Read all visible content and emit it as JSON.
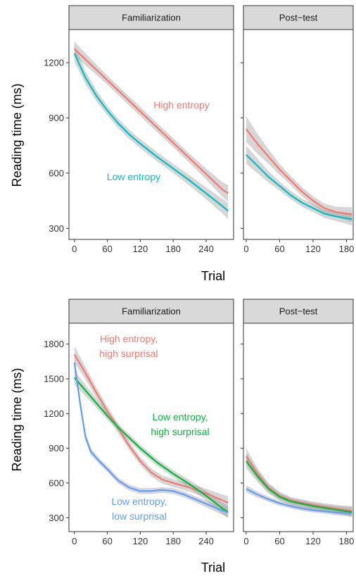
{
  "chart_data": [
    {
      "type": "line",
      "ylabel": "Reading time (ms)",
      "xlabel": "Trial",
      "colors": {
        "High entropy": "#F8766D",
        "Low entropy": "#00BFC4"
      },
      "panels": [
        {
          "title": "Familiarization",
          "xlim": [
            -10,
            290
          ],
          "xticks": [
            0,
            60,
            120,
            180,
            240
          ],
          "series": [
            {
              "name": "High entropy",
              "label_lines": [
                "High entropy"
              ],
              "x": [
                0,
                30,
                60,
                90,
                120,
                150,
                180,
                210,
                240,
                270,
                280
              ],
              "y": [
                1275,
                1190,
                1105,
                1020,
                935,
                850,
                765,
                680,
                595,
                510,
                490
              ],
              "band": [
                40,
                30,
                25,
                25,
                25,
                25,
                25,
                25,
                30,
                40,
                45
              ]
            },
            {
              "name": "Low entropy",
              "label_lines": [
                "Low entropy"
              ],
              "x": [
                0,
                20,
                40,
                60,
                80,
                100,
                120,
                150,
                180,
                210,
                240,
                270,
                280
              ],
              "y": [
                1250,
                1120,
                1020,
                940,
                870,
                810,
                760,
                690,
                625,
                560,
                490,
                420,
                395
              ],
              "band": [
                45,
                35,
                30,
                25,
                25,
                25,
                25,
                25,
                25,
                28,
                32,
                40,
                45
              ]
            }
          ]
        },
        {
          "title": "Post−test",
          "xlim": [
            -5,
            192
          ],
          "xticks": [
            0,
            60,
            120,
            180
          ],
          "series": [
            {
              "name": "High entropy",
              "x": [
                0,
                20,
                40,
                60,
                80,
                100,
                120,
                140,
                160,
                180,
                190
              ],
              "y": [
                840,
                760,
                690,
                620,
                560,
                500,
                450,
                410,
                390,
                380,
                375
              ],
              "band": [
                70,
                55,
                40,
                30,
                25,
                25,
                25,
                25,
                28,
                35,
                40
              ]
            },
            {
              "name": "Low entropy",
              "x": [
                0,
                20,
                40,
                60,
                80,
                100,
                120,
                140,
                160,
                180,
                190
              ],
              "y": [
                700,
                640,
                580,
                530,
                480,
                440,
                410,
                380,
                365,
                355,
                350
              ],
              "band": [
                50,
                40,
                30,
                25,
                22,
                22,
                22,
                22,
                25,
                30,
                35
              ]
            }
          ]
        }
      ],
      "ylim": [
        240,
        1380
      ],
      "yticks": [
        300,
        600,
        900,
        1200
      ]
    },
    {
      "type": "line",
      "ylabel": "Reading time (ms)",
      "xlabel": "Trial",
      "colors": {
        "High entropy, high surprisal": "#F8766D",
        "Low entropy, high surprisal": "#00BA38",
        "Low entropy, low surprisal": "#619CFF"
      },
      "panels": [
        {
          "title": "Familiarization",
          "xlim": [
            -10,
            290
          ],
          "xticks": [
            0,
            60,
            120,
            180,
            240
          ],
          "series": [
            {
              "name": "High entropy, high surprisal",
              "label_lines": [
                "High entropy,",
                "high surprisal"
              ],
              "x": [
                0,
                20,
                40,
                60,
                80,
                100,
                120,
                140,
                160,
                180,
                210,
                240,
                270,
                280
              ],
              "y": [
                1710,
                1550,
                1380,
                1220,
                1070,
                920,
                790,
                690,
                630,
                600,
                560,
                510,
                450,
                430
              ],
              "band": [
                70,
                55,
                45,
                40,
                40,
                35,
                35,
                35,
                35,
                35,
                35,
                40,
                50,
                55
              ]
            },
            {
              "name": "Low entropy, high surprisal",
              "label_lines": [
                "Low entropy,",
                "high surprisal"
              ],
              "x": [
                0,
                20,
                40,
                60,
                80,
                100,
                120,
                150,
                180,
                210,
                240,
                270,
                280
              ],
              "y": [
                1510,
                1400,
                1290,
                1180,
                1080,
                990,
                900,
                780,
                680,
                590,
                490,
                380,
                350
              ],
              "band": [
                60,
                50,
                40,
                35,
                30,
                30,
                30,
                30,
                30,
                35,
                40,
                50,
                55
              ]
            },
            {
              "name": "Low entropy, low surprisal",
              "label_lines": [
                "Low entropy,",
                "low surprisal"
              ],
              "x": [
                0,
                10,
                20,
                30,
                45,
                60,
                80,
                100,
                120,
                140,
                160,
                180,
                200,
                220,
                240,
                260,
                280
              ],
              "y": [
                1640,
                1300,
                1000,
                870,
                790,
                720,
                620,
                560,
                530,
                530,
                540,
                530,
                500,
                460,
                420,
                380,
                345
              ],
              "band": [
                60,
                45,
                35,
                30,
                25,
                25,
                25,
                25,
                25,
                25,
                25,
                25,
                25,
                25,
                30,
                35,
                40
              ]
            }
          ]
        },
        {
          "title": "Post−test",
          "xlim": [
            -5,
            192
          ],
          "xticks": [
            0,
            60,
            120,
            180
          ],
          "series": [
            {
              "name": "High entropy, high surprisal",
              "x": [
                0,
                20,
                40,
                60,
                80,
                100,
                120,
                140,
                160,
                180,
                190
              ],
              "y": [
                830,
                680,
                560,
                490,
                450,
                430,
                410,
                395,
                380,
                365,
                360
              ],
              "band": [
                70,
                50,
                40,
                35,
                30,
                30,
                30,
                30,
                32,
                38,
                42
              ]
            },
            {
              "name": "Low entropy, high surprisal",
              "x": [
                0,
                20,
                40,
                60,
                80,
                100,
                120,
                140,
                160,
                180,
                190
              ],
              "y": [
                790,
                660,
                550,
                480,
                440,
                420,
                400,
                385,
                370,
                355,
                350
              ],
              "band": [
                65,
                50,
                40,
                32,
                30,
                30,
                30,
                30,
                32,
                38,
                42
              ]
            },
            {
              "name": "Low entropy, low surprisal",
              "x": [
                0,
                20,
                40,
                60,
                80,
                100,
                120,
                140,
                160,
                180,
                190
              ],
              "y": [
                550,
                500,
                460,
                425,
                400,
                380,
                365,
                355,
                345,
                340,
                338
              ],
              "band": [
                30,
                25,
                22,
                20,
                20,
                20,
                20,
                20,
                22,
                25,
                28
              ]
            }
          ]
        }
      ],
      "ylim": [
        180,
        1980
      ],
      "yticks": [
        300,
        600,
        900,
        1200,
        1500,
        1800
      ]
    }
  ]
}
